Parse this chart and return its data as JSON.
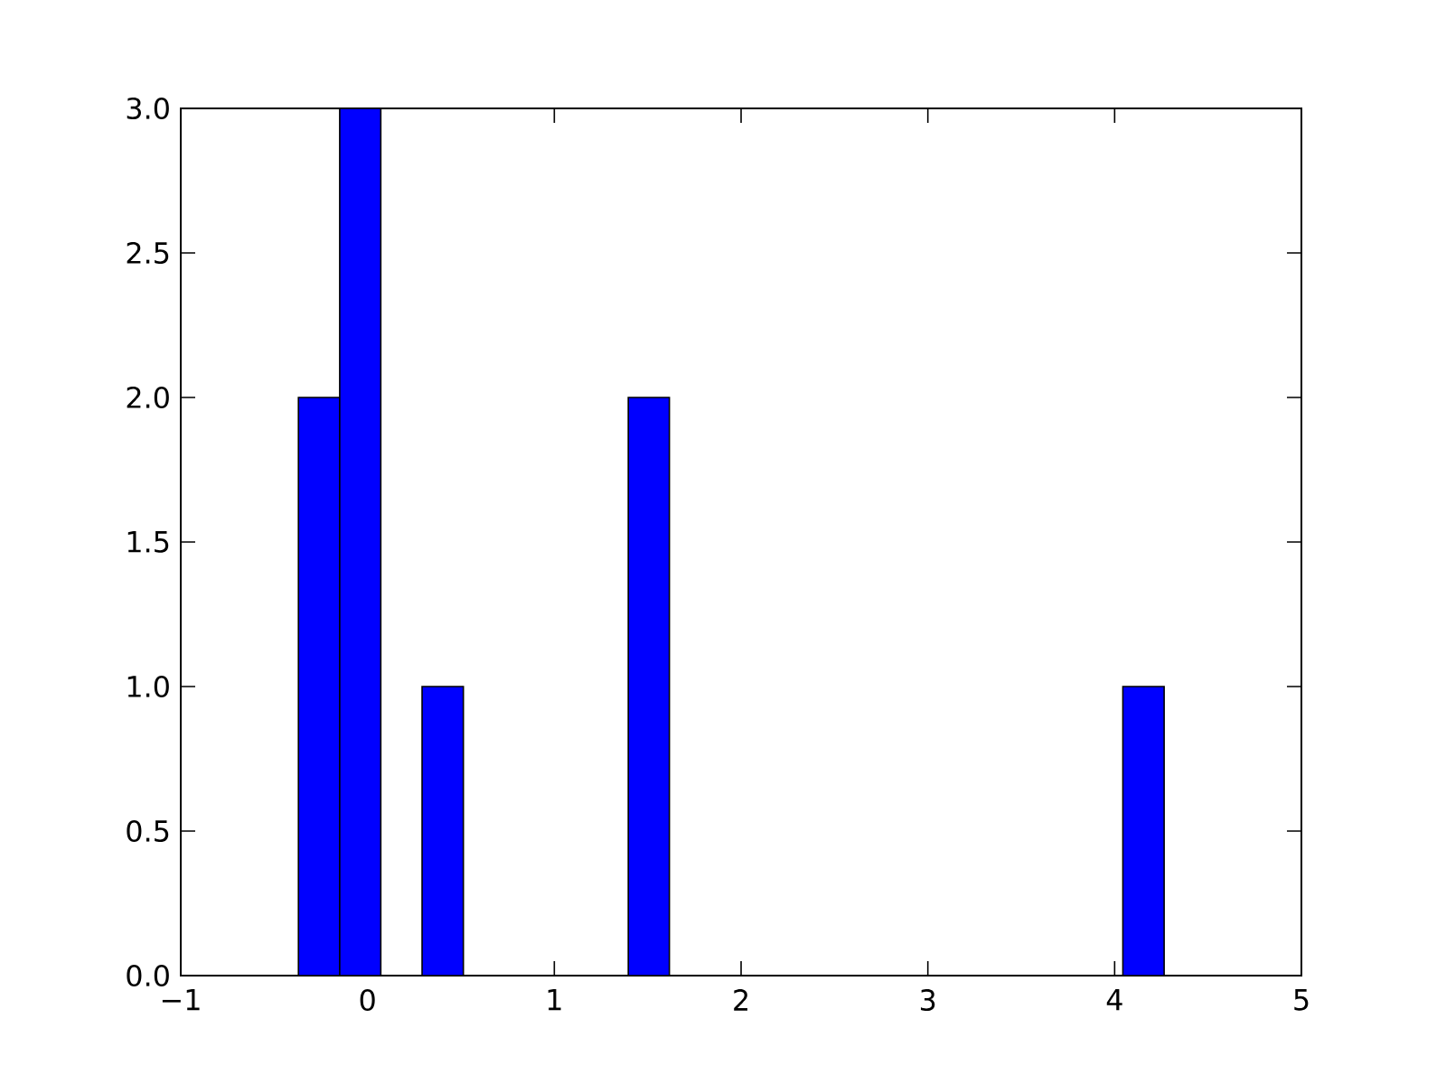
{
  "chart_data": {
    "type": "histogram",
    "bins": [
      -0.37,
      -0.149,
      0.071,
      0.292,
      0.513,
      0.734,
      0.954,
      1.175,
      1.396,
      1.616,
      1.837,
      2.058,
      2.278,
      2.499,
      2.72,
      2.941,
      3.161,
      3.382,
      3.603,
      3.823,
      4.044,
      4.265
    ],
    "values": [
      2,
      3,
      0,
      1,
      0,
      0,
      0,
      0,
      2,
      0,
      0,
      0,
      0,
      0,
      0,
      0,
      0,
      0,
      0,
      0,
      1
    ],
    "color": "#0000ff",
    "xlim": [
      -1,
      5
    ],
    "xticks": [
      {
        "value": -1,
        "label": "−1"
      },
      0,
      1,
      2,
      3,
      4,
      5
    ],
    "ylim": [
      0,
      3
    ],
    "yticks": [
      {
        "value": 0,
        "label": "0.0"
      },
      {
        "value": 0.5,
        "label": "0.5"
      },
      {
        "value": 1,
        "label": "1.0"
      },
      {
        "value": 1.5,
        "label": "1.5"
      },
      {
        "value": 2,
        "label": "2.0"
      },
      {
        "value": 2.5,
        "label": "2.5"
      },
      {
        "value": 3,
        "label": "3.0"
      }
    ],
    "grid": false
  }
}
